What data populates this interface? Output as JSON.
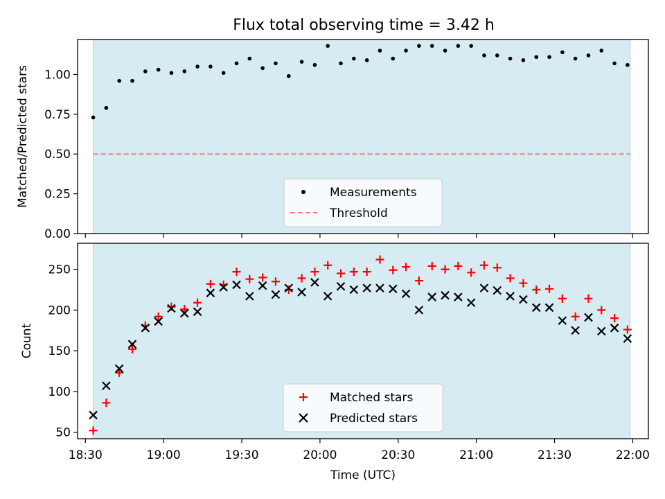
{
  "figure": {
    "title": "Flux total observing time = 3.42 h",
    "xlabel": "Time (UTC)"
  },
  "chart_data": [
    {
      "type": "scatter",
      "panel": "top",
      "ylabel": "Matched/Predicted stars",
      "xlim": [
        "18:27",
        "22:06"
      ],
      "ylim": [
        0.0,
        1.22
      ],
      "yticks": [
        0.0,
        0.25,
        0.5,
        0.75,
        1.0
      ],
      "ytick_labels": [
        "0.00",
        "0.25",
        "0.50",
        "0.75",
        "1.00"
      ],
      "shaded_span": [
        "18:33",
        "21:59"
      ],
      "legend_position": "lower center",
      "series": [
        {
          "name": "Measurements",
          "kind": "scatter",
          "marker": "dot",
          "color": "#000000",
          "x": [
            "18:33",
            "18:38",
            "18:43",
            "18:48",
            "18:53",
            "18:58",
            "19:03",
            "19:08",
            "19:13",
            "19:18",
            "19:23",
            "19:28",
            "19:33",
            "19:38",
            "19:43",
            "19:48",
            "19:53",
            "19:58",
            "20:03",
            "20:08",
            "20:13",
            "20:18",
            "20:23",
            "20:28",
            "20:33",
            "20:38",
            "20:43",
            "20:48",
            "20:53",
            "20:58",
            "21:03",
            "21:08",
            "21:13",
            "21:18",
            "21:23",
            "21:28",
            "21:33",
            "21:38",
            "21:43",
            "21:48",
            "21:53",
            "21:58"
          ],
          "y": [
            0.73,
            0.79,
            0.96,
            0.96,
            1.02,
            1.03,
            1.01,
            1.02,
            1.05,
            1.05,
            1.01,
            1.07,
            1.1,
            1.04,
            1.07,
            0.99,
            1.08,
            1.06,
            1.18,
            1.07,
            1.1,
            1.09,
            1.15,
            1.1,
            1.15,
            1.18,
            1.18,
            1.15,
            1.18,
            1.18,
            1.12,
            1.12,
            1.1,
            1.09,
            1.11,
            1.11,
            1.14,
            1.1,
            1.12,
            1.15,
            1.07,
            1.06
          ]
        },
        {
          "name": "Threshold",
          "kind": "hline",
          "y": 0.5,
          "x_range": [
            "18:33",
            "21:59"
          ],
          "color": "#f08080",
          "style": "dashed"
        }
      ]
    },
    {
      "type": "scatter",
      "panel": "bottom",
      "ylabel": "Count",
      "xlabel": "Time (UTC)",
      "xlim": [
        "18:27",
        "22:06"
      ],
      "ylim": [
        42,
        282
      ],
      "yticks": [
        50,
        100,
        150,
        200,
        250
      ],
      "xticks": [
        "18:30",
        "19:00",
        "19:30",
        "20:00",
        "20:30",
        "21:00",
        "21:30",
        "22:00"
      ],
      "shaded_span": [
        "18:33",
        "21:59"
      ],
      "legend_position": "lower center",
      "series": [
        {
          "name": "Matched stars",
          "kind": "scatter",
          "marker": "plus",
          "color": "#ff0000",
          "x": [
            "18:33",
            "18:38",
            "18:43",
            "18:48",
            "18:53",
            "18:58",
            "19:03",
            "19:08",
            "19:13",
            "19:18",
            "19:23",
            "19:28",
            "19:33",
            "19:38",
            "19:43",
            "19:48",
            "19:53",
            "19:58",
            "20:03",
            "20:08",
            "20:13",
            "20:18",
            "20:23",
            "20:28",
            "20:33",
            "20:38",
            "20:43",
            "20:48",
            "20:53",
            "20:58",
            "21:03",
            "21:08",
            "21:13",
            "21:18",
            "21:23",
            "21:28",
            "21:33",
            "21:38",
            "21:43",
            "21:48",
            "21:53",
            "21:58"
          ],
          "y": [
            52,
            86,
            123,
            152,
            181,
            192,
            204,
            201,
            209,
            232,
            231,
            247,
            238,
            240,
            235,
            225,
            239,
            247,
            255,
            245,
            247,
            247,
            262,
            249,
            253,
            236,
            254,
            250,
            254,
            246,
            255,
            252,
            239,
            233,
            225,
            226,
            214,
            192,
            214,
            200,
            190,
            176
          ]
        },
        {
          "name": "Predicted stars",
          "kind": "scatter",
          "marker": "x",
          "color": "#000000",
          "x": [
            "18:33",
            "18:38",
            "18:43",
            "18:48",
            "18:53",
            "18:58",
            "19:03",
            "19:08",
            "19:13",
            "19:18",
            "19:23",
            "19:28",
            "19:33",
            "19:38",
            "19:43",
            "19:48",
            "19:53",
            "19:58",
            "20:03",
            "20:08",
            "20:13",
            "20:18",
            "20:23",
            "20:28",
            "20:33",
            "20:38",
            "20:43",
            "20:48",
            "20:53",
            "20:58",
            "21:03",
            "21:08",
            "21:13",
            "21:18",
            "21:23",
            "21:28",
            "21:33",
            "21:38",
            "21:43",
            "21:48",
            "21:53",
            "21:58"
          ],
          "y": [
            71,
            107,
            128,
            158,
            178,
            186,
            202,
            196,
            198,
            221,
            228,
            231,
            217,
            230,
            219,
            227,
            222,
            234,
            217,
            229,
            225,
            227,
            227,
            226,
            220,
            200,
            216,
            218,
            216,
            209,
            227,
            224,
            217,
            213,
            203,
            203,
            187,
            175,
            191,
            174,
            178,
            165
          ]
        }
      ]
    }
  ]
}
